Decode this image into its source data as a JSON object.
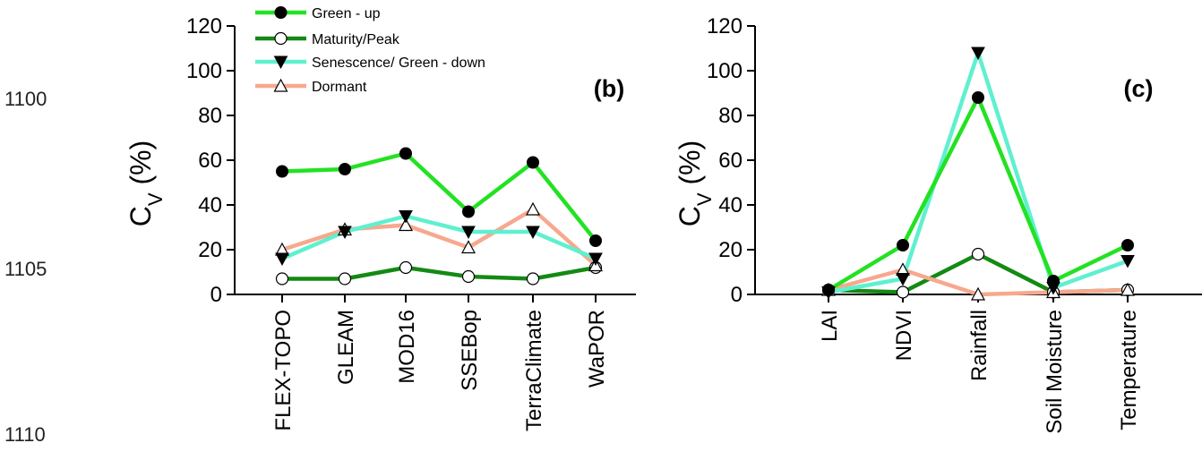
{
  "line_numbers": [
    "1100",
    "1105",
    "1110"
  ],
  "legend": [
    {
      "label": "Green - up",
      "color": "#22e222",
      "marker": "circle-filled"
    },
    {
      "label": " Maturity/Peak",
      "color": "#138a13",
      "marker": "circle-open"
    },
    {
      "label": "Senescence/ Green - down",
      "color": "#5ff0cf",
      "marker": "triangle-down-filled"
    },
    {
      "label": "Dormant",
      "color": "#f7a88e",
      "marker": "triangle-up-open"
    }
  ],
  "chart_data": [
    {
      "type": "line",
      "panel_label": "(b)",
      "ylabel_main": "C",
      "ylabel_sub": "V",
      "ylabel_unit": " (%)",
      "ylim": [
        0,
        120
      ],
      "yticks": [
        "0",
        "20",
        "40",
        "60",
        "80",
        "100",
        "120"
      ],
      "grid": false,
      "categories": [
        "FLEX-TOPO",
        "GLEAM",
        "MOD16",
        "SSEBop",
        "TerraClimate",
        "WaPOR"
      ],
      "series": [
        {
          "name": "Green - up",
          "values": [
            55,
            56,
            63,
            37,
            59,
            24
          ]
        },
        {
          "name": " Maturity/Peak",
          "values": [
            7,
            7,
            12,
            8,
            7,
            12
          ]
        },
        {
          "name": "Senescence/ Green - down",
          "values": [
            16,
            28,
            35,
            28,
            28,
            16
          ]
        },
        {
          "name": "Dormant",
          "values": [
            20,
            29,
            31,
            21,
            38,
            13
          ]
        }
      ]
    },
    {
      "type": "line",
      "panel_label": "(c)",
      "ylabel_main": "C",
      "ylabel_sub": "V",
      "ylabel_unit": " (%)",
      "ylim": [
        0,
        120
      ],
      "yticks": [
        "0",
        "20",
        "40",
        "60",
        "80",
        "100",
        "120"
      ],
      "grid": false,
      "categories": [
        "LAI",
        "NDVI",
        "Rainfall",
        "Soil Moisture",
        "Temperature"
      ],
      "series": [
        {
          "name": "Green - up",
          "values": [
            2,
            22,
            88,
            6,
            22
          ]
        },
        {
          "name": " Maturity/Peak",
          "values": [
            2,
            1,
            18,
            1,
            2
          ]
        },
        {
          "name": "Senescence/ Green - down",
          "values": [
            1,
            7,
            108,
            3,
            15
          ]
        },
        {
          "name": "Dormant",
          "values": [
            2,
            11,
            0,
            1,
            2
          ]
        }
      ]
    }
  ]
}
